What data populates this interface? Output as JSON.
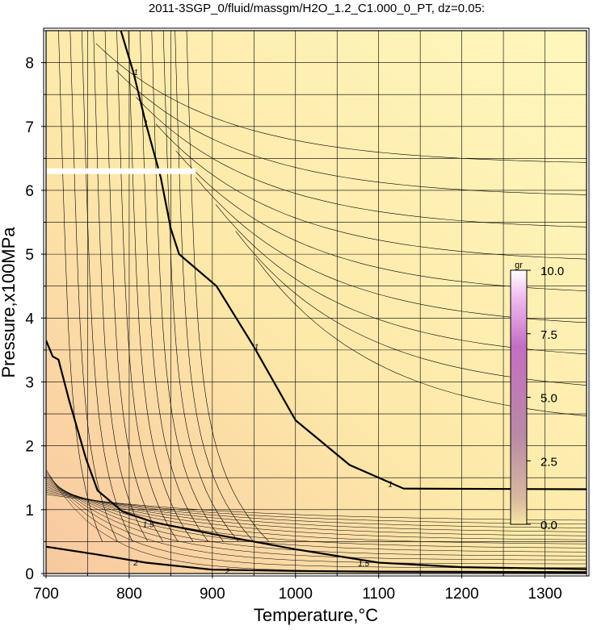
{
  "chart_data": {
    "type": "contour",
    "title": "2011-3SGP_0/fluid/massgm/H2O_1.2_C1.000_0_PT, dz=0.05:",
    "xlabel": "Temperature,°C",
    "ylabel": "Pressure,x100MPa",
    "xlim": [
      700,
      1350
    ],
    "ylim": [
      0,
      8.5
    ],
    "x_ticks": [
      "700",
      "800",
      "900",
      "1000",
      "1100",
      "1200",
      "1300"
    ],
    "y_ticks": [
      "0",
      "1",
      "2",
      "3",
      "4",
      "5",
      "6",
      "7",
      "8"
    ],
    "grid": true,
    "contour_interval": 0.05,
    "labeled_contours": [
      {
        "level": "1",
        "points": [
          [
            790,
            8.5
          ],
          [
            805,
            7.85
          ],
          [
            820,
            7.05
          ],
          [
            838,
            6.2
          ],
          [
            850,
            5.4
          ],
          [
            860,
            5.0
          ],
          [
            905,
            4.5
          ],
          [
            950,
            3.55
          ],
          [
            1000,
            2.4
          ],
          [
            1065,
            1.7
          ],
          [
            1130,
            1.33
          ],
          [
            1350,
            1.32
          ]
        ],
        "label_positions": [
          [
            808,
            7.85
          ],
          [
            820,
            7.05
          ],
          [
            953,
            3.55
          ],
          [
            1114,
            1.4
          ]
        ]
      },
      {
        "level": "1.5",
        "points": [
          [
            700,
            3.65
          ],
          [
            708,
            3.4
          ],
          [
            715,
            3.35
          ],
          [
            728,
            2.7
          ],
          [
            748,
            1.8
          ],
          [
            762,
            1.3
          ],
          [
            792,
            0.97
          ],
          [
            830,
            0.8
          ],
          [
            900,
            0.62
          ],
          [
            1000,
            0.38
          ],
          [
            1100,
            0.17
          ],
          [
            1200,
            0.1
          ],
          [
            1350,
            0.07
          ]
        ],
        "label_positions": [
          [
            823,
            0.77
          ],
          [
            1082,
            0.16
          ]
        ]
      },
      {
        "level": "2",
        "points": [
          [
            700,
            0.42
          ],
          [
            760,
            0.3
          ],
          [
            820,
            0.17
          ],
          [
            900,
            0.06
          ],
          [
            1000,
            0.04
          ],
          [
            1100,
            0.03
          ],
          [
            1350,
            0.02
          ]
        ],
        "label_positions": [
          [
            808,
            0.17
          ],
          [
            918,
            0.04
          ]
        ]
      }
    ],
    "highlight_band": {
      "x": [
        700,
        880
      ],
      "y": 6.3
    },
    "colorbar": {
      "label": "gr",
      "range": [
        0.0,
        10.0
      ],
      "tick_labels": [
        "10.0",
        "7.5",
        "5.0",
        "2.5",
        "0.0"
      ],
      "tick_values": [
        10.0,
        7.5,
        5.0,
        2.5,
        0.0
      ],
      "colors": [
        "#f6e6a2",
        "#d9b9a0",
        "#b98aa5",
        "#c46ec3",
        "#f2bff2",
        "#ffffff"
      ]
    },
    "background_colors": [
      "#f8c8a0",
      "#fde9a9",
      "#fff7bd"
    ]
  }
}
